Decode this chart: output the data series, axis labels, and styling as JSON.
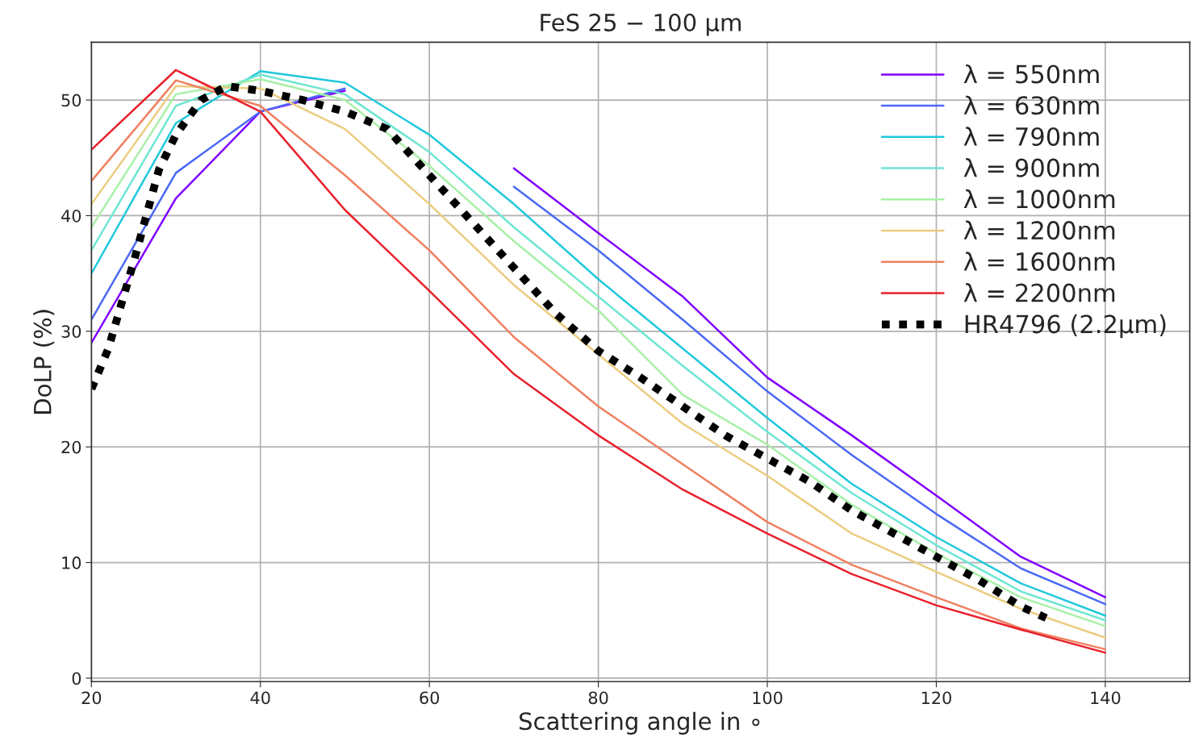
{
  "chart_data": {
    "type": "line",
    "title": "FeS 25 − 100 μm",
    "xlabel": "Scattering angle in ∘",
    "ylabel": "DoLP (%)",
    "x": [
      20,
      30,
      40,
      50,
      60,
      70,
      80,
      90,
      100,
      110,
      120,
      130,
      140
    ],
    "series": [
      {
        "name": "λ = 550nm",
        "color": "#8000ff",
        "values": [
          29.0,
          41.5,
          49.0,
          50.8,
          null,
          44.1,
          38.5,
          33.0,
          26.0,
          21.0,
          15.8,
          10.5,
          7.0
        ]
      },
      {
        "name": "λ = 630nm",
        "color": "#4a68f5",
        "values": [
          31.0,
          43.7,
          49.0,
          51.0,
          null,
          42.5,
          37.0,
          31.0,
          24.8,
          19.3,
          14.2,
          9.5,
          6.4
        ]
      },
      {
        "name": "λ = 790nm",
        "color": "#20c8dc",
        "values": [
          35.0,
          48.0,
          52.5,
          51.5,
          47.0,
          41.0,
          34.5,
          28.5,
          22.5,
          16.8,
          12.2,
          8.2,
          5.4
        ]
      },
      {
        "name": "λ = 900nm",
        "color": "#6ee6d2",
        "values": [
          37.0,
          49.5,
          52.2,
          50.5,
          45.5,
          39.0,
          33.0,
          27.0,
          21.3,
          16.0,
          11.5,
          7.5,
          5.0
        ]
      },
      {
        "name": "λ = 1000nm",
        "color": "#a8f0a8",
        "values": [
          39.0,
          50.5,
          51.8,
          50.0,
          44.3,
          37.8,
          31.8,
          24.5,
          20.2,
          15.0,
          10.8,
          7.0,
          4.5
        ]
      },
      {
        "name": "λ = 1200nm",
        "color": "#eccc80",
        "values": [
          41.0,
          51.2,
          51.0,
          47.5,
          41.0,
          34.0,
          28.0,
          22.0,
          17.5,
          12.5,
          9.2,
          6.0,
          3.5
        ]
      },
      {
        "name": "λ = 1600nm",
        "color": "#f08060",
        "values": [
          43.0,
          51.7,
          49.5,
          43.5,
          37.0,
          29.5,
          23.5,
          18.5,
          13.5,
          9.8,
          7.0,
          4.3,
          2.5
        ]
      },
      {
        "name": "λ = 2200nm",
        "color": "#e8202c",
        "values": [
          45.7,
          52.6,
          49.0,
          40.5,
          33.5,
          26.3,
          21.0,
          16.3,
          12.5,
          9.0,
          6.3,
          4.2,
          2.2
        ]
      },
      {
        "name": "HR4796 (2.2μm)",
        "color": "#000000",
        "line_style": "dotted",
        "x": [
          20,
          22,
          25,
          28,
          30,
          33,
          36,
          40,
          45,
          50,
          55,
          60,
          65,
          70,
          75,
          80,
          85,
          90,
          95,
          100,
          105,
          110,
          115,
          120,
          125,
          130,
          133
        ],
        "values": [
          25.0,
          28.5,
          36.0,
          44.0,
          47.0,
          50.0,
          51.2,
          50.8,
          50.0,
          49.0,
          47.5,
          43.5,
          39.5,
          35.5,
          31.5,
          28.3,
          26.0,
          23.5,
          21.0,
          19.0,
          17.0,
          14.5,
          12.5,
          10.5,
          8.5,
          6.2,
          5.2
        ]
      }
    ],
    "xlim": [
      20,
      150
    ],
    "ylim": [
      -0.3,
      55
    ],
    "xticks": [
      20,
      40,
      60,
      80,
      100,
      120,
      140
    ],
    "yticks": [
      0,
      10,
      20,
      30,
      40,
      50
    ],
    "grid": true,
    "legend": "top right",
    "line_style": "solid",
    "marker": "none"
  }
}
